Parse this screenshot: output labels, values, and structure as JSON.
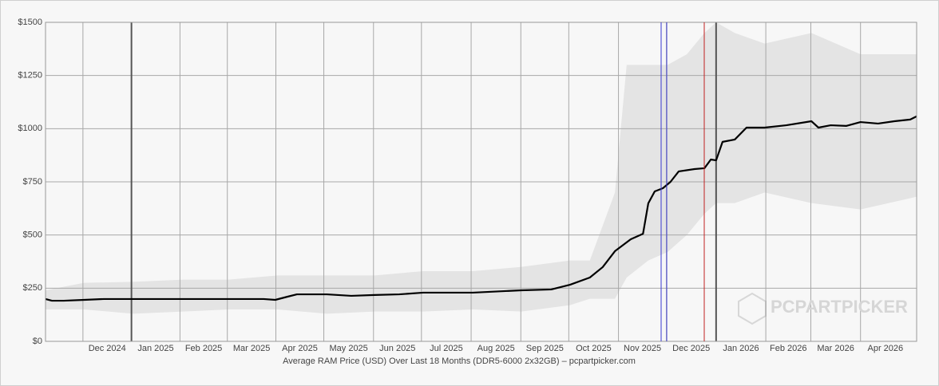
{
  "chart_data": {
    "type": "line",
    "x_label": "Average RAM Price (USD) Over Last 18 Months (DDR5-6000 2x32GB) – pcpartpicker.com",
    "watermark": "PCPARTPICKER",
    "xlim": [
      2024.853,
      2026.343
    ],
    "ylim": [
      0,
      1500
    ],
    "yticks": [
      {
        "value": 0,
        "label": "$0"
      },
      {
        "value": 250,
        "label": "$250"
      },
      {
        "value": 500,
        "label": "$500"
      },
      {
        "value": 750,
        "label": "$750"
      },
      {
        "value": 1000,
        "label": "$1000"
      },
      {
        "value": 1250,
        "label": "$1250"
      },
      {
        "value": 1500,
        "label": "$1500"
      }
    ],
    "xticks": [
      {
        "value": 2024.917,
        "label": "Dec 2024"
      },
      {
        "value": 2025.0,
        "label": "Jan 2025"
      },
      {
        "value": 2025.083,
        "label": "Feb 2025"
      },
      {
        "value": 2025.164,
        "label": "Mar 2025"
      },
      {
        "value": 2025.247,
        "label": "Apr 2025"
      },
      {
        "value": 2025.329,
        "label": "May 2025"
      },
      {
        "value": 2025.414,
        "label": "Jun 2025"
      },
      {
        "value": 2025.496,
        "label": "Jul 2025"
      },
      {
        "value": 2025.581,
        "label": "Aug 2025"
      },
      {
        "value": 2025.666,
        "label": "Sep 2025"
      },
      {
        "value": 2025.748,
        "label": "Oct 2025"
      },
      {
        "value": 2025.833,
        "label": "Nov 2025"
      },
      {
        "value": 2025.915,
        "label": "Dec 2025"
      },
      {
        "value": 2026.0,
        "label": "Jan 2026"
      },
      {
        "value": 2026.085,
        "label": "Feb 2026"
      },
      {
        "value": 2026.162,
        "label": "Mar 2026"
      },
      {
        "value": 2026.247,
        "label": "Apr 2026"
      }
    ],
    "grid": true,
    "series": [
      {
        "color": "#000000",
        "x": [
          2024.853,
          2024.864,
          2024.884,
          2024.919,
          2024.953,
          2025.003,
          2025.089,
          2025.166,
          2025.226,
          2025.246,
          2025.267,
          2025.283,
          2025.334,
          2025.376,
          2025.416,
          2025.458,
          2025.499,
          2025.584,
          2025.667,
          2025.718,
          2025.75,
          2025.784,
          2025.806,
          2025.827,
          2025.854,
          2025.875,
          2025.884,
          2025.895,
          2025.909,
          2025.922,
          2025.936,
          2025.963,
          2025.98,
          2025.991,
          2026.0,
          2026.011,
          2026.032,
          2026.052,
          2026.083,
          2026.12,
          2026.163,
          2026.175,
          2026.196,
          2026.223,
          2026.247,
          2026.277,
          2026.305,
          2026.332,
          2026.343
        ],
        "values": [
          199,
          191,
          191,
          195,
          199,
          199,
          199,
          199,
          199,
          195,
          210,
          221,
          221,
          214,
          218,
          221,
          229,
          229,
          240,
          244,
          266,
          300,
          349,
          424,
          480,
          506,
          649,
          705,
          720,
          750,
          799,
          810,
          814,
          855,
          851,
          938,
          949,
          1005,
          1005,
          1016,
          1035,
          1005,
          1016,
          1013,
          1031,
          1024,
          1035,
          1043,
          1058
        ]
      }
    ],
    "band": {
      "color": "#e4e4e4",
      "x": [
        2024.853,
        2024.919,
        2025.003,
        2025.089,
        2025.166,
        2025.25,
        2025.334,
        2025.416,
        2025.499,
        2025.584,
        2025.667,
        2025.75,
        2025.784,
        2025.827,
        2025.847,
        2025.884,
        2025.917,
        2025.95,
        2025.98,
        2026.0,
        2026.032,
        2026.083,
        2026.163,
        2026.247,
        2026.343
      ],
      "low": [
        150,
        150,
        130,
        140,
        150,
        150,
        130,
        140,
        140,
        150,
        140,
        170,
        200,
        200,
        300,
        380,
        420,
        500,
        600,
        650,
        650,
        700,
        650,
        620,
        680
      ],
      "high": [
        240,
        275,
        280,
        290,
        290,
        310,
        310,
        310,
        330,
        330,
        350,
        380,
        380,
        700,
        1300,
        1300,
        1300,
        1350,
        1450,
        1500,
        1450,
        1400,
        1450,
        1350,
        1350
      ]
    }
  }
}
